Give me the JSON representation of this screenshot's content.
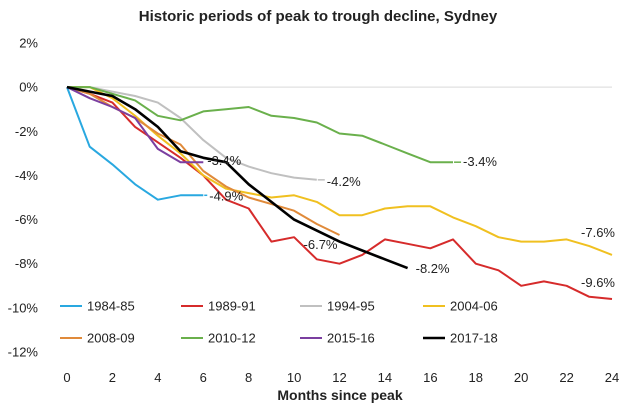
{
  "chart_data": {
    "type": "line",
    "title": "Historic periods of peak to trough decline, Sydney",
    "xlabel": "Months since peak",
    "ylabel": "",
    "xlim": [
      0,
      24
    ],
    "ylim": [
      -12,
      2
    ],
    "xticks": [
      0,
      2,
      4,
      6,
      8,
      10,
      12,
      14,
      16,
      18,
      20,
      22,
      24
    ],
    "yticks": [
      2,
      0,
      -2,
      -4,
      -6,
      -8,
      -10,
      -12
    ],
    "ytick_labels": [
      "2%",
      "0%",
      "-2%",
      "-4%",
      "-6%",
      "-8%",
      "-10%",
      "-12%"
    ],
    "legend_position": "bottom-left",
    "series": [
      {
        "name": "1984-85",
        "color": "#29a8e0",
        "values": [
          0,
          -2.7,
          -3.5,
          -4.4,
          -5.1,
          -4.9,
          -4.9
        ]
      },
      {
        "name": "1989-91",
        "color": "#d62b2b",
        "values": [
          0,
          -0.3,
          -0.7,
          -1.8,
          -2.5,
          -3.2,
          -4.0,
          -5.1,
          -5.5,
          -7.0,
          -6.8,
          -7.8,
          -8.0,
          -7.6,
          -6.9,
          -7.1,
          -7.3,
          -6.9,
          -8.0,
          -8.3,
          -9.0,
          -8.8,
          -9.0,
          -9.5,
          -9.6
        ]
      },
      {
        "name": "1994-95",
        "color": "#c0c0c0",
        "values": [
          0,
          0.0,
          -0.2,
          -0.4,
          -0.7,
          -1.4,
          -2.4,
          -3.2,
          -3.6,
          -3.9,
          -4.1,
          -4.2
        ]
      },
      {
        "name": "2004-06",
        "color": "#f0c020",
        "values": [
          0,
          0.0,
          -0.5,
          -1.3,
          -2.2,
          -3.0,
          -4.0,
          -4.6,
          -4.8,
          -5.0,
          -4.9,
          -5.2,
          -5.8,
          -5.8,
          -5.5,
          -5.4,
          -5.4,
          -5.9,
          -6.3,
          -6.8,
          -7.0,
          -7.0,
          -6.9,
          -7.2,
          -7.6
        ]
      },
      {
        "name": "2008-09",
        "color": "#e08a3a",
        "values": [
          0,
          -0.3,
          -0.9,
          -1.4,
          -2.1,
          -2.6,
          -3.8,
          -4.5,
          -5.0,
          -5.3,
          -5.6,
          -6.2,
          -6.7
        ]
      },
      {
        "name": "2010-12",
        "color": "#6ab04c",
        "values": [
          0,
          0.0,
          -0.3,
          -0.6,
          -1.3,
          -1.5,
          -1.1,
          -1.0,
          -0.9,
          -1.3,
          -1.4,
          -1.6,
          -2.1,
          -2.2,
          -2.6,
          -3.0,
          -3.4,
          -3.4
        ]
      },
      {
        "name": "2015-16",
        "color": "#7b3fa0",
        "values": [
          0,
          -0.5,
          -0.9,
          -1.4,
          -2.8,
          -3.4,
          -3.4
        ]
      },
      {
        "name": "2017-18",
        "color": "#000000",
        "values": [
          0,
          -0.2,
          -0.4,
          -1.0,
          -1.8,
          -2.9,
          -3.2,
          -3.4,
          -4.4,
          -5.2,
          -6.0,
          -6.5,
          -7.0,
          -7.4,
          -7.8,
          -8.2
        ]
      }
    ],
    "annotations": [
      {
        "text": "-3.4%",
        "series": "2010-12"
      },
      {
        "text": "-4.2%",
        "series": "1994-95"
      },
      {
        "text": "-3.4%",
        "series": "2015-16"
      },
      {
        "text": "-4.9%",
        "series": "1984-85"
      },
      {
        "text": "-6.7%",
        "series": "2008-09"
      },
      {
        "text": "-8.2%",
        "series": "2017-18"
      },
      {
        "text": "-7.6%",
        "series": "2004-06"
      },
      {
        "text": "-9.6%",
        "series": "1989-91"
      }
    ]
  }
}
